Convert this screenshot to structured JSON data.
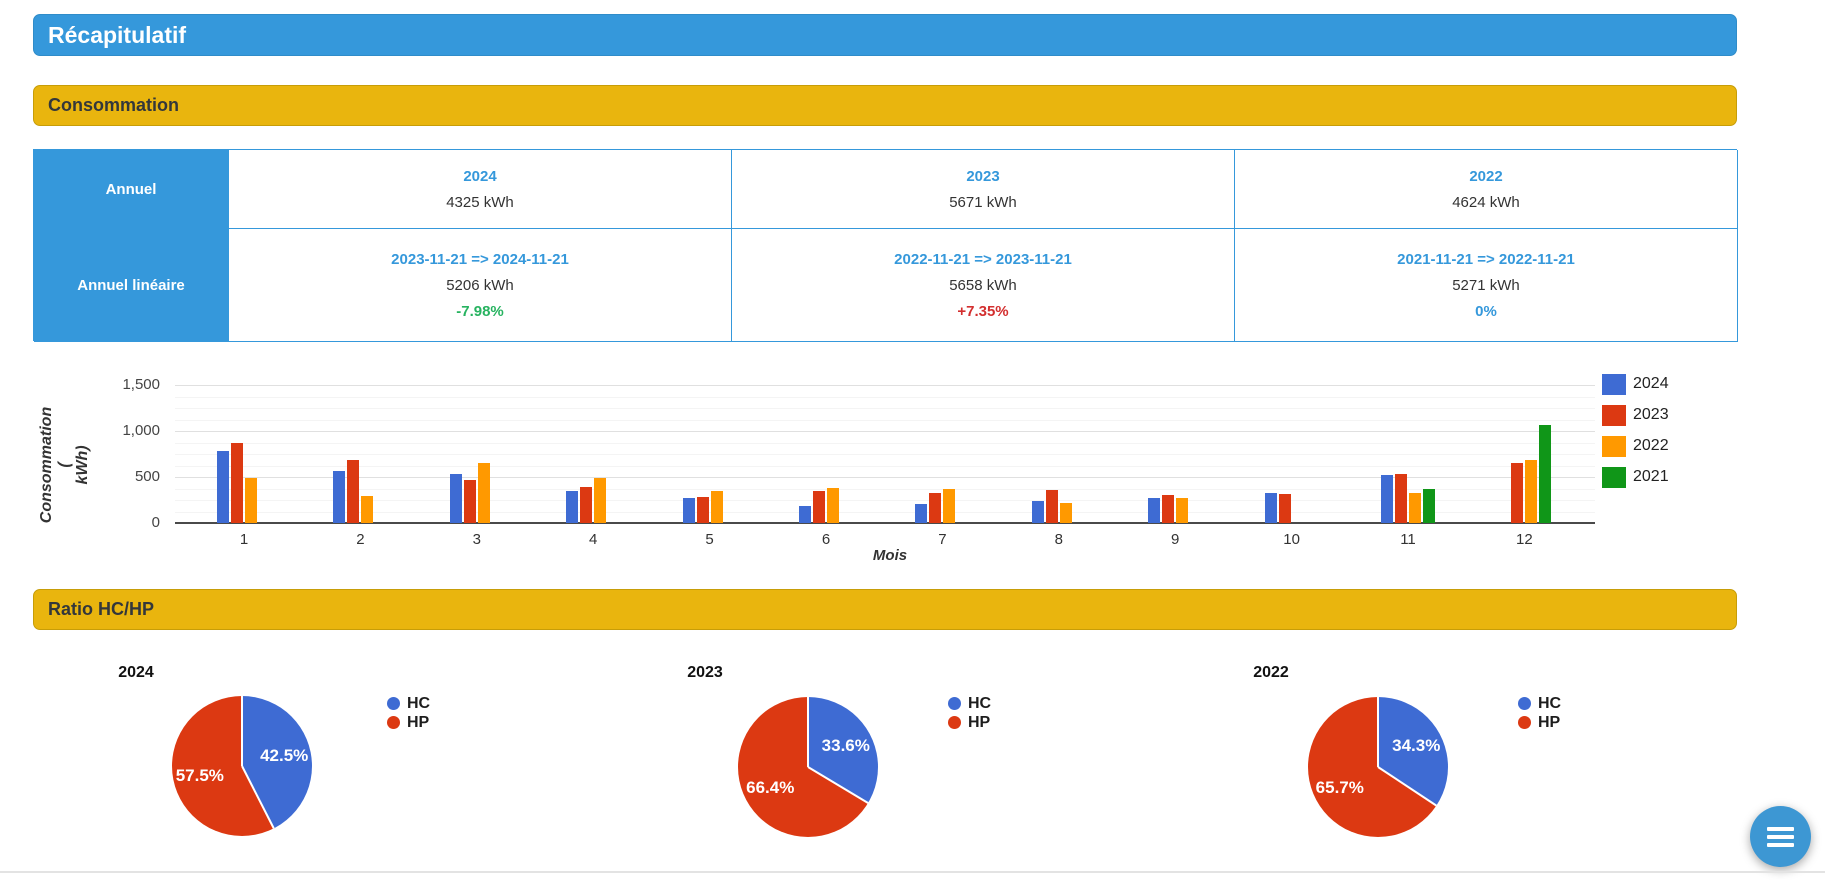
{
  "header": {
    "title": "Récapitulatif"
  },
  "sections": {
    "consumption": "Consommation",
    "ratio": "Ratio HC/HP"
  },
  "colors": {
    "accent_blue": "#3598db",
    "gold": "#e9b50e",
    "delta_green": "#27b360",
    "delta_red": "#d32f2f",
    "delta_blue": "#3598db",
    "series_2024": "#3e6bd3",
    "series_2023": "#dc3912",
    "series_2022": "#ff9900",
    "series_2021": "#109618"
  },
  "summary_table": {
    "rows": [
      {
        "label": "Annuel",
        "cells": [
          {
            "header": "2024",
            "value": "4325 kWh"
          },
          {
            "header": "2023",
            "value": "5671 kWh"
          },
          {
            "header": "2022",
            "value": "4624 kWh"
          }
        ]
      },
      {
        "label": "Annuel linéaire",
        "cells": [
          {
            "header": "2023-11-21 => 2024-11-21",
            "value": "5206 kWh",
            "delta": "-7.98%",
            "delta_color": "#27b360"
          },
          {
            "header": "2022-11-21 => 2023-11-21",
            "value": "5658 kWh",
            "delta": "+7.35%",
            "delta_color": "#d32f2f"
          },
          {
            "header": "2021-11-21 => 2022-11-21",
            "value": "5271 kWh",
            "delta": "0%",
            "delta_color": "#3598db"
          }
        ]
      }
    ]
  },
  "chart_data": [
    {
      "type": "bar",
      "title": "",
      "xlabel": "Mois",
      "ylabel": "Consommation (\nkWh)",
      "ylim": [
        0,
        1500
      ],
      "yticks": [
        "0",
        "500",
        "1,000",
        "1,500"
      ],
      "grid": true,
      "legend_position": "right",
      "categories": [
        "1",
        "2",
        "3",
        "4",
        "5",
        "6",
        "7",
        "8",
        "9",
        "10",
        "11",
        "12"
      ],
      "series": [
        {
          "name": "2024",
          "color": "#3e6bd3",
          "values": [
            780,
            560,
            530,
            345,
            270,
            180,
            205,
            240,
            270,
            330,
            525,
            null
          ]
        },
        {
          "name": "2023",
          "color": "#dc3912",
          "values": [
            870,
            680,
            465,
            395,
            285,
            345,
            330,
            355,
            305,
            320,
            535,
            650
          ]
        },
        {
          "name": "2022",
          "color": "#ff9900",
          "values": [
            490,
            290,
            650,
            490,
            345,
            385,
            365,
            220,
            275,
            null,
            330,
            680
          ]
        },
        {
          "name": "2021",
          "color": "#109618",
          "values": [
            null,
            null,
            null,
            null,
            null,
            null,
            null,
            null,
            null,
            null,
            375,
            1070
          ]
        }
      ]
    },
    {
      "type": "pie",
      "title": "2024",
      "legend_position": "right",
      "slices": [
        {
          "label": "HC",
          "pct": 42.5,
          "text": "42.5%",
          "color": "#3e6bd3"
        },
        {
          "label": "HP",
          "pct": 57.5,
          "text": "57.5%",
          "color": "#dc3912"
        }
      ]
    },
    {
      "type": "pie",
      "title": "2023",
      "legend_position": "right",
      "slices": [
        {
          "label": "HC",
          "pct": 33.6,
          "text": "33.6%",
          "color": "#3e6bd3"
        },
        {
          "label": "HP",
          "pct": 66.4,
          "text": "66.4%",
          "color": "#dc3912"
        }
      ]
    },
    {
      "type": "pie",
      "title": "2022",
      "legend_position": "right",
      "slices": [
        {
          "label": "HC",
          "pct": 34.3,
          "text": "34.3%",
          "color": "#3e6bd3"
        },
        {
          "label": "HP",
          "pct": 65.7,
          "text": "65.7%",
          "color": "#dc3912"
        }
      ]
    }
  ],
  "fab": {
    "icon": "hamburger-menu"
  }
}
